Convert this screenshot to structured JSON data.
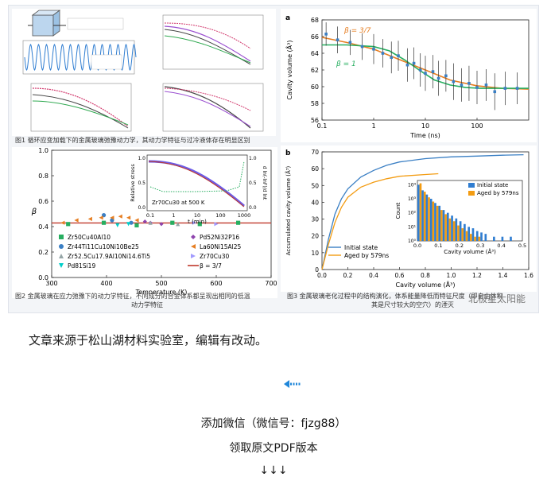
{
  "figure_block": {
    "caption1": "图1 循环应变加载下的金属玻璃弛豫动力学，其动力学特征与过冷液体存在明显区别",
    "caption2_lines": [
      "图2 金属玻璃在应力弛豫下的动力学特征，不同成分的合金体系都呈现出相同的低温",
      "动力学特征"
    ],
    "caption3_lines": [
      "图3 金属玻璃老化过程中的结构演化，体系能量降低而特征尺度（即自由体积",
      "其是尺寸较大的空穴）的湮灭"
    ],
    "watermark": "北极星太阳能"
  },
  "chart_data": [
    {
      "id": "fig3a",
      "type": "scatter",
      "panel_label": "a",
      "xlabel": "Time (ns)",
      "ylabel": "Cavity volume (Å³)",
      "xscale": "log",
      "xlim": [
        0.1,
        1000
      ],
      "ylim": [
        56,
        68
      ],
      "xticks": [
        "0.1",
        "1",
        "10",
        "100"
      ],
      "yticks": [
        "56",
        "58",
        "60",
        "62",
        "64",
        "66",
        "68"
      ],
      "annotations": [
        {
          "text": "β = 3/7",
          "color": "#e67e22"
        },
        {
          "text": "β = 1",
          "color": "#27ae60"
        }
      ],
      "series": [
        {
          "style": "points",
          "color": "#3a7fc4",
          "x": [
            0.12,
            0.2,
            0.35,
            0.6,
            1,
            1.5,
            2.2,
            3,
            4.5,
            6,
            8,
            10,
            14,
            18,
            25,
            35,
            50,
            70,
            100,
            150,
            220,
            350,
            600
          ],
          "y": [
            66.3,
            65.6,
            65.3,
            64.8,
            64.5,
            64.0,
            63.5,
            63.7,
            62.6,
            62.8,
            62.0,
            61.6,
            61.8,
            61.0,
            61.3,
            60.6,
            60.2,
            60.4,
            59.9,
            60.2,
            59.4,
            59.8,
            59.8
          ],
          "err": [
            1.4,
            1.6,
            1.5,
            1.6,
            1.8,
            1.7,
            1.9,
            1.8,
            2.0,
            1.9,
            2.0,
            2.1,
            2.0,
            2.1,
            1.9,
            2.2,
            2.0,
            2.1,
            2.0,
            1.9,
            2.2,
            2.0,
            1.9
          ]
        },
        {
          "style": "line",
          "color": "#e67e22",
          "x": [
            0.1,
            0.3,
            1,
            3,
            10,
            30,
            100,
            300,
            1000
          ],
          "y": [
            65.9,
            65.3,
            64.5,
            63.3,
            62.0,
            60.8,
            60.1,
            59.8,
            59.7
          ]
        },
        {
          "style": "line",
          "color": "#27ae60",
          "x": [
            0.1,
            0.3,
            1,
            2,
            4,
            8,
            15,
            30,
            60,
            120,
            300,
            1000
          ],
          "y": [
            65.0,
            65.0,
            64.8,
            64.3,
            63.2,
            61.9,
            60.8,
            60.2,
            59.9,
            59.8,
            59.8,
            59.8
          ]
        }
      ]
    },
    {
      "id": "fig3b",
      "type": "line",
      "panel_label": "b",
      "xlabel": "Cavity volume (Å³)",
      "ylabel": "Accumulated cavity volume (Å³)",
      "xlim": [
        0,
        1.6
      ],
      "ylim": [
        0,
        70
      ],
      "xticks": [
        "0.0",
        "0.2",
        "0.4",
        "0.6",
        "0.8",
        "1.0",
        "1.2",
        "1.4",
        "1.6"
      ],
      "yticks": [
        "0",
        "10",
        "20",
        "30",
        "40",
        "50",
        "60",
        "70"
      ],
      "legend": [
        "Initial state",
        "Aged by 579ns"
      ],
      "series": [
        {
          "name": "Initial state",
          "color": "#3a7fc4",
          "x": [
            0,
            0.05,
            0.1,
            0.15,
            0.2,
            0.3,
            0.4,
            0.5,
            0.6,
            0.8,
            1.0,
            1.2,
            1.4,
            1.56
          ],
          "y": [
            0,
            18,
            33,
            42,
            48,
            55,
            59,
            62,
            64,
            66,
            67,
            67.5,
            68,
            68.3
          ]
        },
        {
          "name": "Aged by 579ns",
          "color": "#f39c12",
          "x": [
            0,
            0.05,
            0.1,
            0.15,
            0.2,
            0.3,
            0.4,
            0.5,
            0.6,
            0.8,
            0.9
          ],
          "y": [
            0,
            15,
            28,
            37,
            43,
            49,
            52,
            54,
            55.5,
            56.5,
            57
          ]
        }
      ],
      "inset": {
        "type": "bar",
        "xlabel": "Cavity volume (Å³)",
        "ylabel": "Count",
        "xlim": [
          0,
          0.5
        ],
        "xticks": [
          "0.0",
          "0.1",
          "0.2",
          "0.3",
          "0.4",
          "0.5"
        ],
        "yticks": [
          "10⁰",
          "10¹",
          "10²",
          "10³",
          "10⁴"
        ],
        "legend": [
          "Initial state",
          "Aged by 579ns"
        ],
        "bin_start": [
          0,
          0.02,
          0.04,
          0.06,
          0.08,
          0.1,
          0.12,
          0.14,
          0.16,
          0.18,
          0.2,
          0.22,
          0.24,
          0.26,
          0.28,
          0.3,
          0.32,
          0.34,
          0.36,
          0.38,
          0.4,
          0.42,
          0.44
        ],
        "initial_log10": [
          4.0,
          3.6,
          3.3,
          3.0,
          2.7,
          2.5,
          2.2,
          2.0,
          1.8,
          1.6,
          1.4,
          1.2,
          1.0,
          0.9,
          0.7,
          0.6,
          0.5,
          0.0,
          0.3,
          0.0,
          0.3,
          0.0,
          0.3
        ],
        "aged_log10": [
          4.1,
          3.5,
          3.1,
          2.8,
          2.5,
          2.2,
          1.9,
          1.6,
          1.4,
          1.1,
          0.9,
          0.7,
          0.5,
          0.3,
          0.3,
          0.0,
          0.0,
          0,
          0,
          0,
          0,
          0,
          0
        ]
      }
    },
    {
      "id": "fig2",
      "type": "scatter",
      "ylabel": "β",
      "xlabel": "Temperature (K)",
      "xlim": [
        300,
        700
      ],
      "ylim": [
        0,
        1
      ],
      "xticks": [
        "300",
        "400",
        "500",
        "600",
        "700"
      ],
      "yticks": [
        "0.0",
        "0.2",
        "0.4",
        "0.6",
        "0.8",
        "1.0"
      ],
      "reference_line": 0.4286,
      "legend": [
        {
          "label": "Zr50Cu40Al10",
          "marker": "square",
          "color": "#27ae60"
        },
        {
          "label": "Pd52Ni32P16",
          "marker": "diamond",
          "color": "#8e44ad"
        },
        {
          "label": "Zr44Ti11Cu10Ni10Be25",
          "marker": "circle",
          "color": "#3a7fc4"
        },
        {
          "label": "La60Ni15Al25",
          "marker": "tri-left",
          "color": "#e67e22"
        },
        {
          "label": "Zr52.5Cu17.9Al10Ni14.6Ti5",
          "marker": "tri-up",
          "color": "#95a5a6"
        },
        {
          "label": "Zr70Cu30",
          "marker": "tri-right",
          "color": "#a29bfe"
        },
        {
          "label": "Pd81Si19",
          "marker": "tri-down",
          "color": "#00cec9"
        },
        {
          "label": "β = 3/7",
          "marker": "line",
          "color": "#c0392b"
        }
      ],
      "points": [
        {
          "x": 330,
          "y": 0.42,
          "m": 0
        },
        {
          "x": 395,
          "y": 0.43,
          "m": 0
        },
        {
          "x": 455,
          "y": 0.41,
          "m": 0
        },
        {
          "x": 520,
          "y": 0.43,
          "m": 0
        },
        {
          "x": 570,
          "y": 0.42,
          "m": 0
        },
        {
          "x": 640,
          "y": 0.43,
          "m": 0
        },
        {
          "x": 470,
          "y": 0.44,
          "m": 1
        },
        {
          "x": 480,
          "y": 0.43,
          "m": 1
        },
        {
          "x": 500,
          "y": 0.42,
          "m": 1
        },
        {
          "x": 395,
          "y": 0.49,
          "m": 2
        },
        {
          "x": 410,
          "y": 0.45,
          "m": 2
        },
        {
          "x": 445,
          "y": 0.43,
          "m": 2
        },
        {
          "x": 320,
          "y": 0.43,
          "m": 3
        },
        {
          "x": 345,
          "y": 0.45,
          "m": 3
        },
        {
          "x": 370,
          "y": 0.46,
          "m": 3
        },
        {
          "x": 390,
          "y": 0.47,
          "m": 3
        },
        {
          "x": 410,
          "y": 0.47,
          "m": 3
        },
        {
          "x": 425,
          "y": 0.48,
          "m": 3
        },
        {
          "x": 440,
          "y": 0.47,
          "m": 3
        },
        {
          "x": 455,
          "y": 0.45,
          "m": 3
        },
        {
          "x": 480,
          "y": 0.43,
          "m": 4
        },
        {
          "x": 530,
          "y": 0.42,
          "m": 4
        },
        {
          "x": 560,
          "y": 0.43,
          "m": 5
        },
        {
          "x": 600,
          "y": 0.42,
          "m": 5
        },
        {
          "x": 420,
          "y": 0.41,
          "m": 6
        },
        {
          "x": 440,
          "y": 0.42,
          "m": 6
        }
      ],
      "inset": {
        "xlabel": "t (min)",
        "ylabel_left": "Relative stress",
        "ylabel_right": "d ln(-lnF)/d lnt",
        "label": "Zr70Cu30 at 500 K",
        "xticks": [
          "0.1",
          "1",
          "10",
          "100",
          "1000"
        ],
        "yticks_left": [
          "0.0",
          "0.5",
          "1.0"
        ],
        "yticks_right": [
          "0.0",
          "0.5",
          "1.0"
        ]
      }
    }
  ],
  "body_text": {
    "source_note": "文章来源于松山湖材料实验室，编辑有改动。",
    "wechat_line": "添加微信（微信号：fjzg88）",
    "pdf_line": "领取原文PDF版本",
    "arrows": "↓↓↓"
  }
}
